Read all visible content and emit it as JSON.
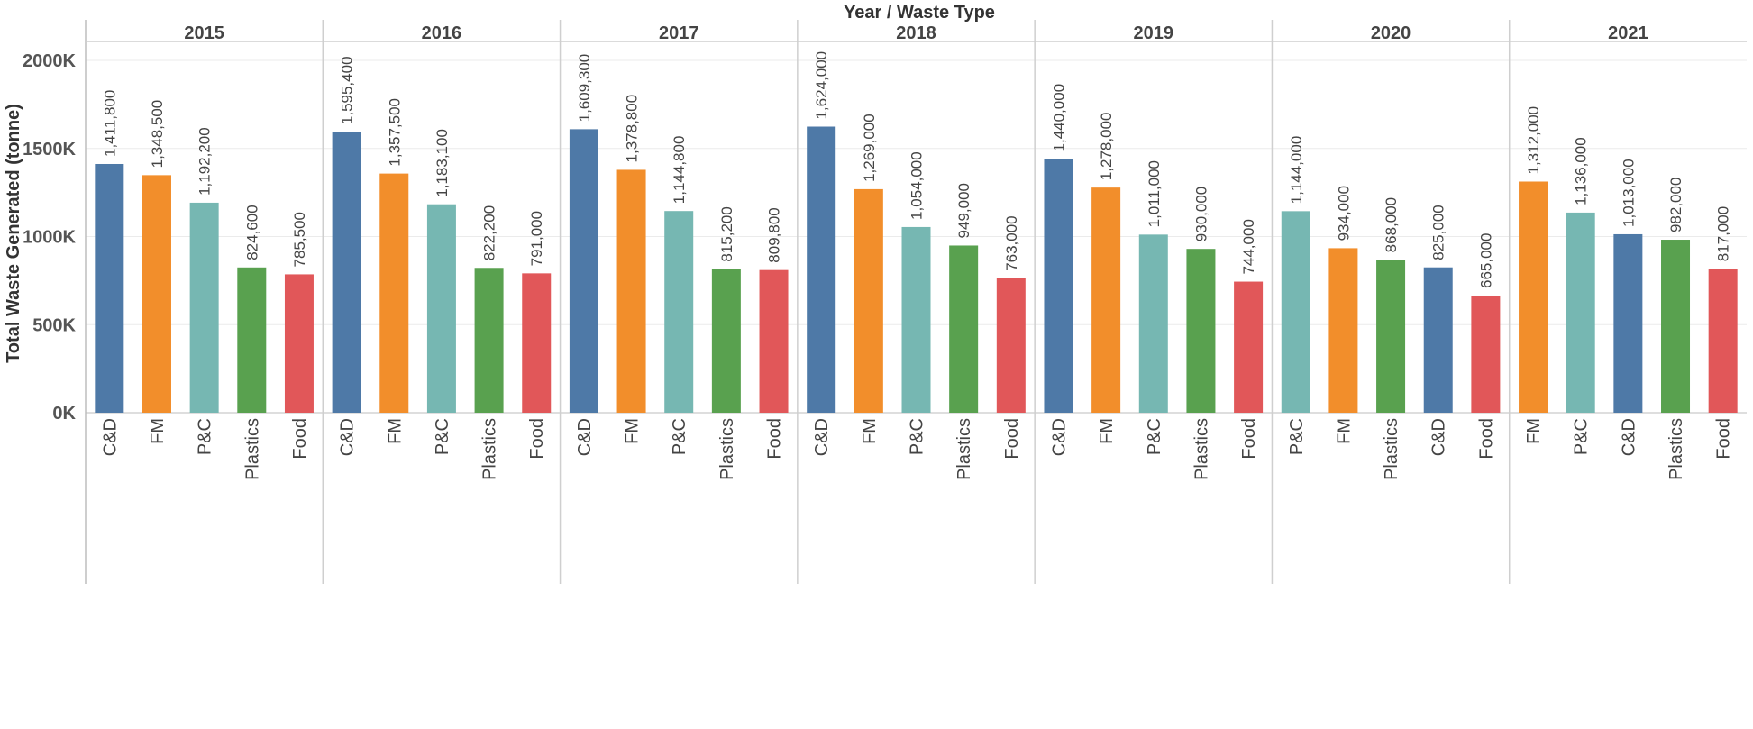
{
  "chart_data": {
    "type": "bar",
    "title": "Year / Waste Type",
    "xlabel": "",
    "ylabel": "Total Waste Generated (tonne)",
    "ylim": [
      0,
      2000000
    ],
    "yticks": [
      {
        "value": 0,
        "label": "0K"
      },
      {
        "value": 500000,
        "label": "500K"
      },
      {
        "value": 1000000,
        "label": "1000K"
      },
      {
        "value": 1500000,
        "label": "1500K"
      },
      {
        "value": 2000000,
        "label": "2000K"
      }
    ],
    "grid": true,
    "colors": {
      "C&D": "#4e79a7",
      "FM": "#f28e2b",
      "P&C": "#76b7b2",
      "Plastics": "#59a14f",
      "Food": "#e15759"
    },
    "groups": [
      {
        "year": "2015",
        "bars": [
          {
            "category": "C&D",
            "value": 1411800,
            "label": "1,411,800"
          },
          {
            "category": "FM",
            "value": 1348500,
            "label": "1,348,500"
          },
          {
            "category": "P&C",
            "value": 1192200,
            "label": "1,192,200"
          },
          {
            "category": "Plastics",
            "value": 824600,
            "label": "824,600"
          },
          {
            "category": "Food",
            "value": 785500,
            "label": "785,500"
          }
        ]
      },
      {
        "year": "2016",
        "bars": [
          {
            "category": "C&D",
            "value": 1595400,
            "label": "1,595,400"
          },
          {
            "category": "FM",
            "value": 1357500,
            "label": "1,357,500"
          },
          {
            "category": "P&C",
            "value": 1183100,
            "label": "1,183,100"
          },
          {
            "category": "Plastics",
            "value": 822200,
            "label": "822,200"
          },
          {
            "category": "Food",
            "value": 791000,
            "label": "791,000"
          }
        ]
      },
      {
        "year": "2017",
        "bars": [
          {
            "category": "C&D",
            "value": 1609300,
            "label": "1,609,300"
          },
          {
            "category": "FM",
            "value": 1378800,
            "label": "1,378,800"
          },
          {
            "category": "P&C",
            "value": 1144800,
            "label": "1,144,800"
          },
          {
            "category": "Plastics",
            "value": 815200,
            "label": "815,200"
          },
          {
            "category": "Food",
            "value": 809800,
            "label": "809,800"
          }
        ]
      },
      {
        "year": "2018",
        "bars": [
          {
            "category": "C&D",
            "value": 1624000,
            "label": "1,624,000"
          },
          {
            "category": "FM",
            "value": 1269000,
            "label": "1,269,000"
          },
          {
            "category": "P&C",
            "value": 1054000,
            "label": "1,054,000"
          },
          {
            "category": "Plastics",
            "value": 949000,
            "label": "949,000"
          },
          {
            "category": "Food",
            "value": 763000,
            "label": "763,000"
          }
        ]
      },
      {
        "year": "2019",
        "bars": [
          {
            "category": "C&D",
            "value": 1440000,
            "label": "1,440,000"
          },
          {
            "category": "FM",
            "value": 1278000,
            "label": "1,278,000"
          },
          {
            "category": "P&C",
            "value": 1011000,
            "label": "1,011,000"
          },
          {
            "category": "Plastics",
            "value": 930000,
            "label": "930,000"
          },
          {
            "category": "Food",
            "value": 744000,
            "label": "744,000"
          }
        ]
      },
      {
        "year": "2020",
        "bars": [
          {
            "category": "P&C",
            "value": 1144000,
            "label": "1,144,000"
          },
          {
            "category": "FM",
            "value": 934000,
            "label": "934,000"
          },
          {
            "category": "Plastics",
            "value": 868000,
            "label": "868,000"
          },
          {
            "category": "C&D",
            "value": 825000,
            "label": "825,000"
          },
          {
            "category": "Food",
            "value": 665000,
            "label": "665,000"
          }
        ]
      },
      {
        "year": "2021",
        "bars": [
          {
            "category": "FM",
            "value": 1312000,
            "label": "1,312,000"
          },
          {
            "category": "P&C",
            "value": 1136000,
            "label": "1,136,000"
          },
          {
            "category": "C&D",
            "value": 1013000,
            "label": "1,013,000"
          },
          {
            "category": "Plastics",
            "value": 982000,
            "label": "982,000"
          },
          {
            "category": "Food",
            "value": 817000,
            "label": "817,000"
          }
        ]
      }
    ]
  }
}
